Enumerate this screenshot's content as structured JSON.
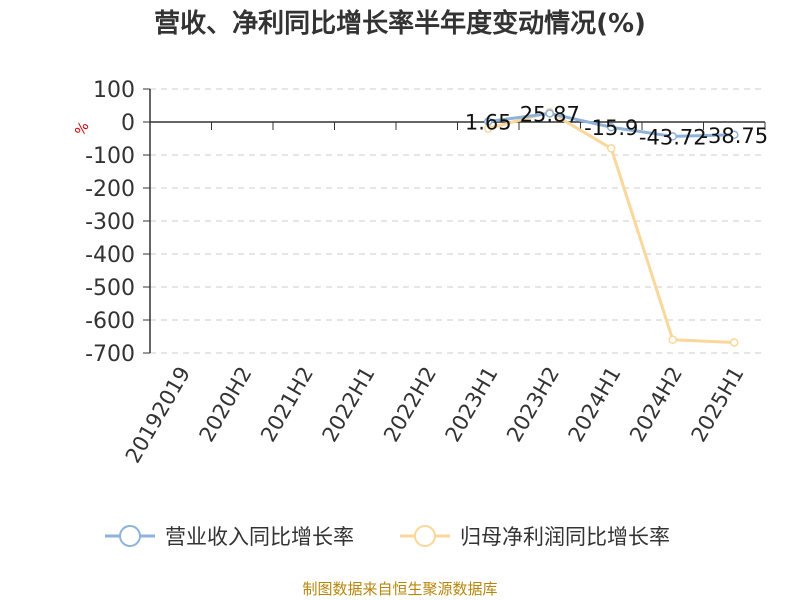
{
  "chart_data": {
    "type": "line",
    "title": "营收、净利同比增长率半年度变动情况(%)",
    "ylabel": "%",
    "xlabel": "",
    "categories": [
      "20192019",
      "2020H2",
      "2021H2",
      "2022H1",
      "2022H2",
      "2023H1",
      "2023H2",
      "2024H1",
      "2024H2",
      "2025H1"
    ],
    "ylim": [
      -700,
      100
    ],
    "yticks": [
      100,
      0,
      -100,
      -200,
      -300,
      -400,
      -500,
      -600,
      -700
    ],
    "grid": true,
    "legend_position": "bottom",
    "series": [
      {
        "name": "营业收入同比增长率",
        "color": "#8eb2d9",
        "values": [
          null,
          null,
          null,
          null,
          null,
          1.65,
          25.87,
          -15.9,
          -43.72,
          -38.75
        ],
        "labels": [
          "",
          "",
          "",
          "",
          "",
          "1.65",
          "25.87",
          "-15.9",
          "-43.72",
          "-38.75"
        ]
      },
      {
        "name": "归母净利润同比增长率",
        "color": "#fad79a",
        "values": [
          null,
          null,
          null,
          null,
          null,
          -20,
          30,
          -80,
          -660,
          -668
        ],
        "labels": [
          "",
          "",
          "",
          "",
          "",
          "",
          "",
          "",
          "",
          ""
        ]
      }
    ]
  },
  "source": "制图数据来自恒生聚源数据库"
}
